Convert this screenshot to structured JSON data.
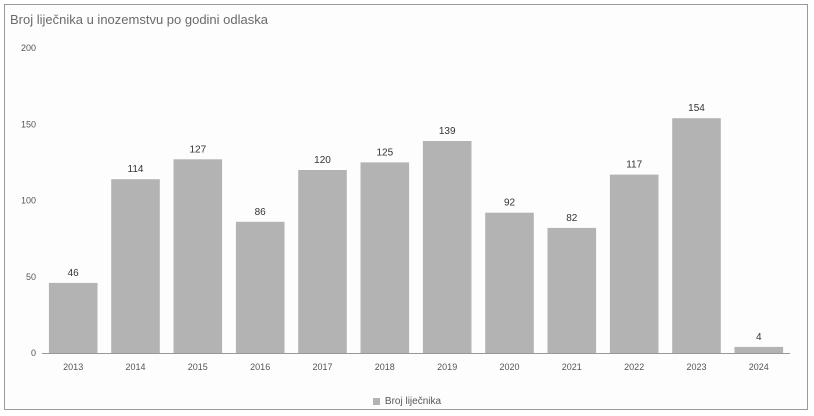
{
  "chart_data": {
    "type": "bar",
    "title": "Broj liječnika u inozemstvu po godini odlaska",
    "categories": [
      "2013",
      "2014",
      "2015",
      "2016",
      "2017",
      "2018",
      "2019",
      "2020",
      "2021",
      "2022",
      "2023",
      "2024"
    ],
    "series": [
      {
        "name": "Broj liječnika",
        "values": [
          46,
          114,
          127,
          86,
          120,
          125,
          139,
          92,
          82,
          117,
          154,
          4
        ]
      }
    ],
    "yticks": [
      0,
      50,
      100,
      150,
      200
    ],
    "ylim": [
      0,
      200
    ],
    "legend": "bottom",
    "bar_color": "#b3b3b3",
    "grid": false
  }
}
